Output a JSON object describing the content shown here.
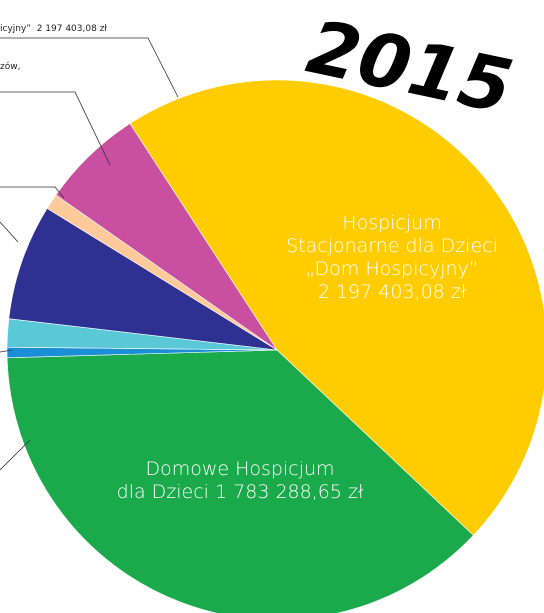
{
  "chart_data": {
    "type": "pie",
    "title": "2015",
    "categories": [
      "Hospicjum\nStacjonarne dla Dzieci\n„Dom Hospicyjny”",
      "Domowe Hospicjum\ndla Dzieci",
      null,
      null,
      null,
      null,
      null
    ],
    "values": [
      2197403.08,
      1783288.65,
      30000,
      80000,
      330000,
      45000,
      290000
    ],
    "value_labels": [
      "2 197 403,08 zł",
      "1 783 288,65 zł",
      null,
      null,
      null,
      null,
      null
    ],
    "colors": [
      "#ffcc00",
      "#1aaa4b",
      "#1a8fd8",
      "#5bc8d8",
      "#2e3192",
      "#ffc99a",
      "#c94fa0"
    ],
    "annotations": [
      "icyjny”  2 197 403,08 zł",
      "zów,"
    ]
  }
}
